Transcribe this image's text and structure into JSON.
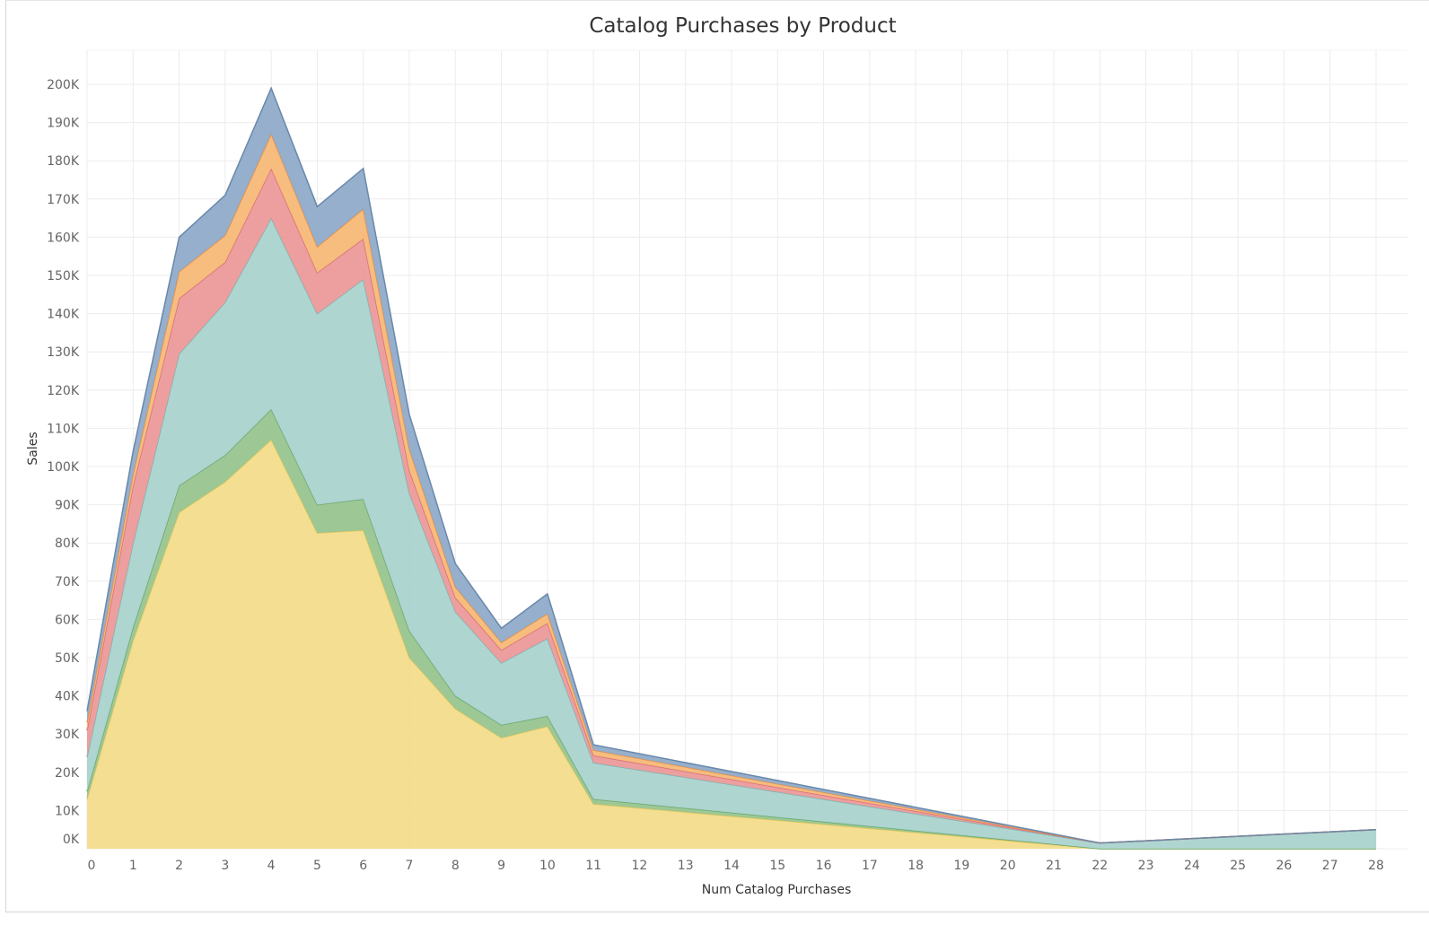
{
  "chart_data": {
    "type": "area",
    "stacked": true,
    "title": "Catalog Purchases by Product",
    "xlabel": "Num Catalog Purchases",
    "ylabel": "Sales",
    "xlim": [
      0,
      28
    ],
    "ylim": [
      0,
      200000
    ],
    "grid": true,
    "x_ticks": [
      "0",
      "1",
      "2",
      "3",
      "4",
      "5",
      "6",
      "7",
      "8",
      "9",
      "10",
      "11",
      "12",
      "13",
      "14",
      "15",
      "16",
      "17",
      "18",
      "19",
      "20",
      "21",
      "22",
      "23",
      "24",
      "25",
      "26",
      "27",
      "28"
    ],
    "y_ticks": [
      "0K",
      "10K",
      "20K",
      "30K",
      "40K",
      "50K",
      "60K",
      "70K",
      "80K",
      "90K",
      "100K",
      "110K",
      "120K",
      "130K",
      "140K",
      "150K",
      "160K",
      "170K",
      "180K",
      "190K",
      "200K"
    ],
    "x": [
      0,
      1,
      2,
      3,
      4,
      5,
      6,
      7,
      8,
      9,
      10,
      11,
      22,
      28
    ],
    "series": [
      {
        "color": "#f2dc8c",
        "line": "#e8c95a",
        "values": [
          13000,
          54500,
          88000,
          96000,
          107000,
          82600,
          83300,
          50000,
          36600,
          29000,
          32000,
          11700,
          0,
          0
        ]
      },
      {
        "color": "#98c590",
        "line": "#6aa86a",
        "values": [
          2000,
          3500,
          7000,
          7000,
          8000,
          7400,
          8200,
          7000,
          3400,
          3400,
          2700,
          1300,
          0,
          0
        ]
      },
      {
        "color": "#abd3cf",
        "line": "#7fb5b0",
        "values": [
          9000,
          22000,
          34500,
          40000,
          50000,
          50000,
          57500,
          36000,
          22000,
          16200,
          20300,
          9500,
          1500,
          5000
        ]
      },
      {
        "color": "#ec9a9a",
        "line": "#d8707a",
        "values": [
          7000,
          15000,
          14500,
          10500,
          13000,
          10700,
          10600,
          6000,
          3700,
          3400,
          4000,
          1900,
          0,
          0
        ]
      },
      {
        "color": "#f5b978",
        "line": "#ee9040",
        "values": [
          2000,
          3000,
          7000,
          7000,
          9000,
          6800,
          7800,
          5500,
          2800,
          2000,
          2500,
          1400,
          0,
          0
        ]
      },
      {
        "color": "#8fabc9",
        "line": "#6a88aa",
        "values": [
          3000,
          6000,
          9000,
          10500,
          12000,
          10500,
          10600,
          9100,
          6100,
          3700,
          5200,
          1400,
          0,
          0
        ]
      }
    ]
  }
}
